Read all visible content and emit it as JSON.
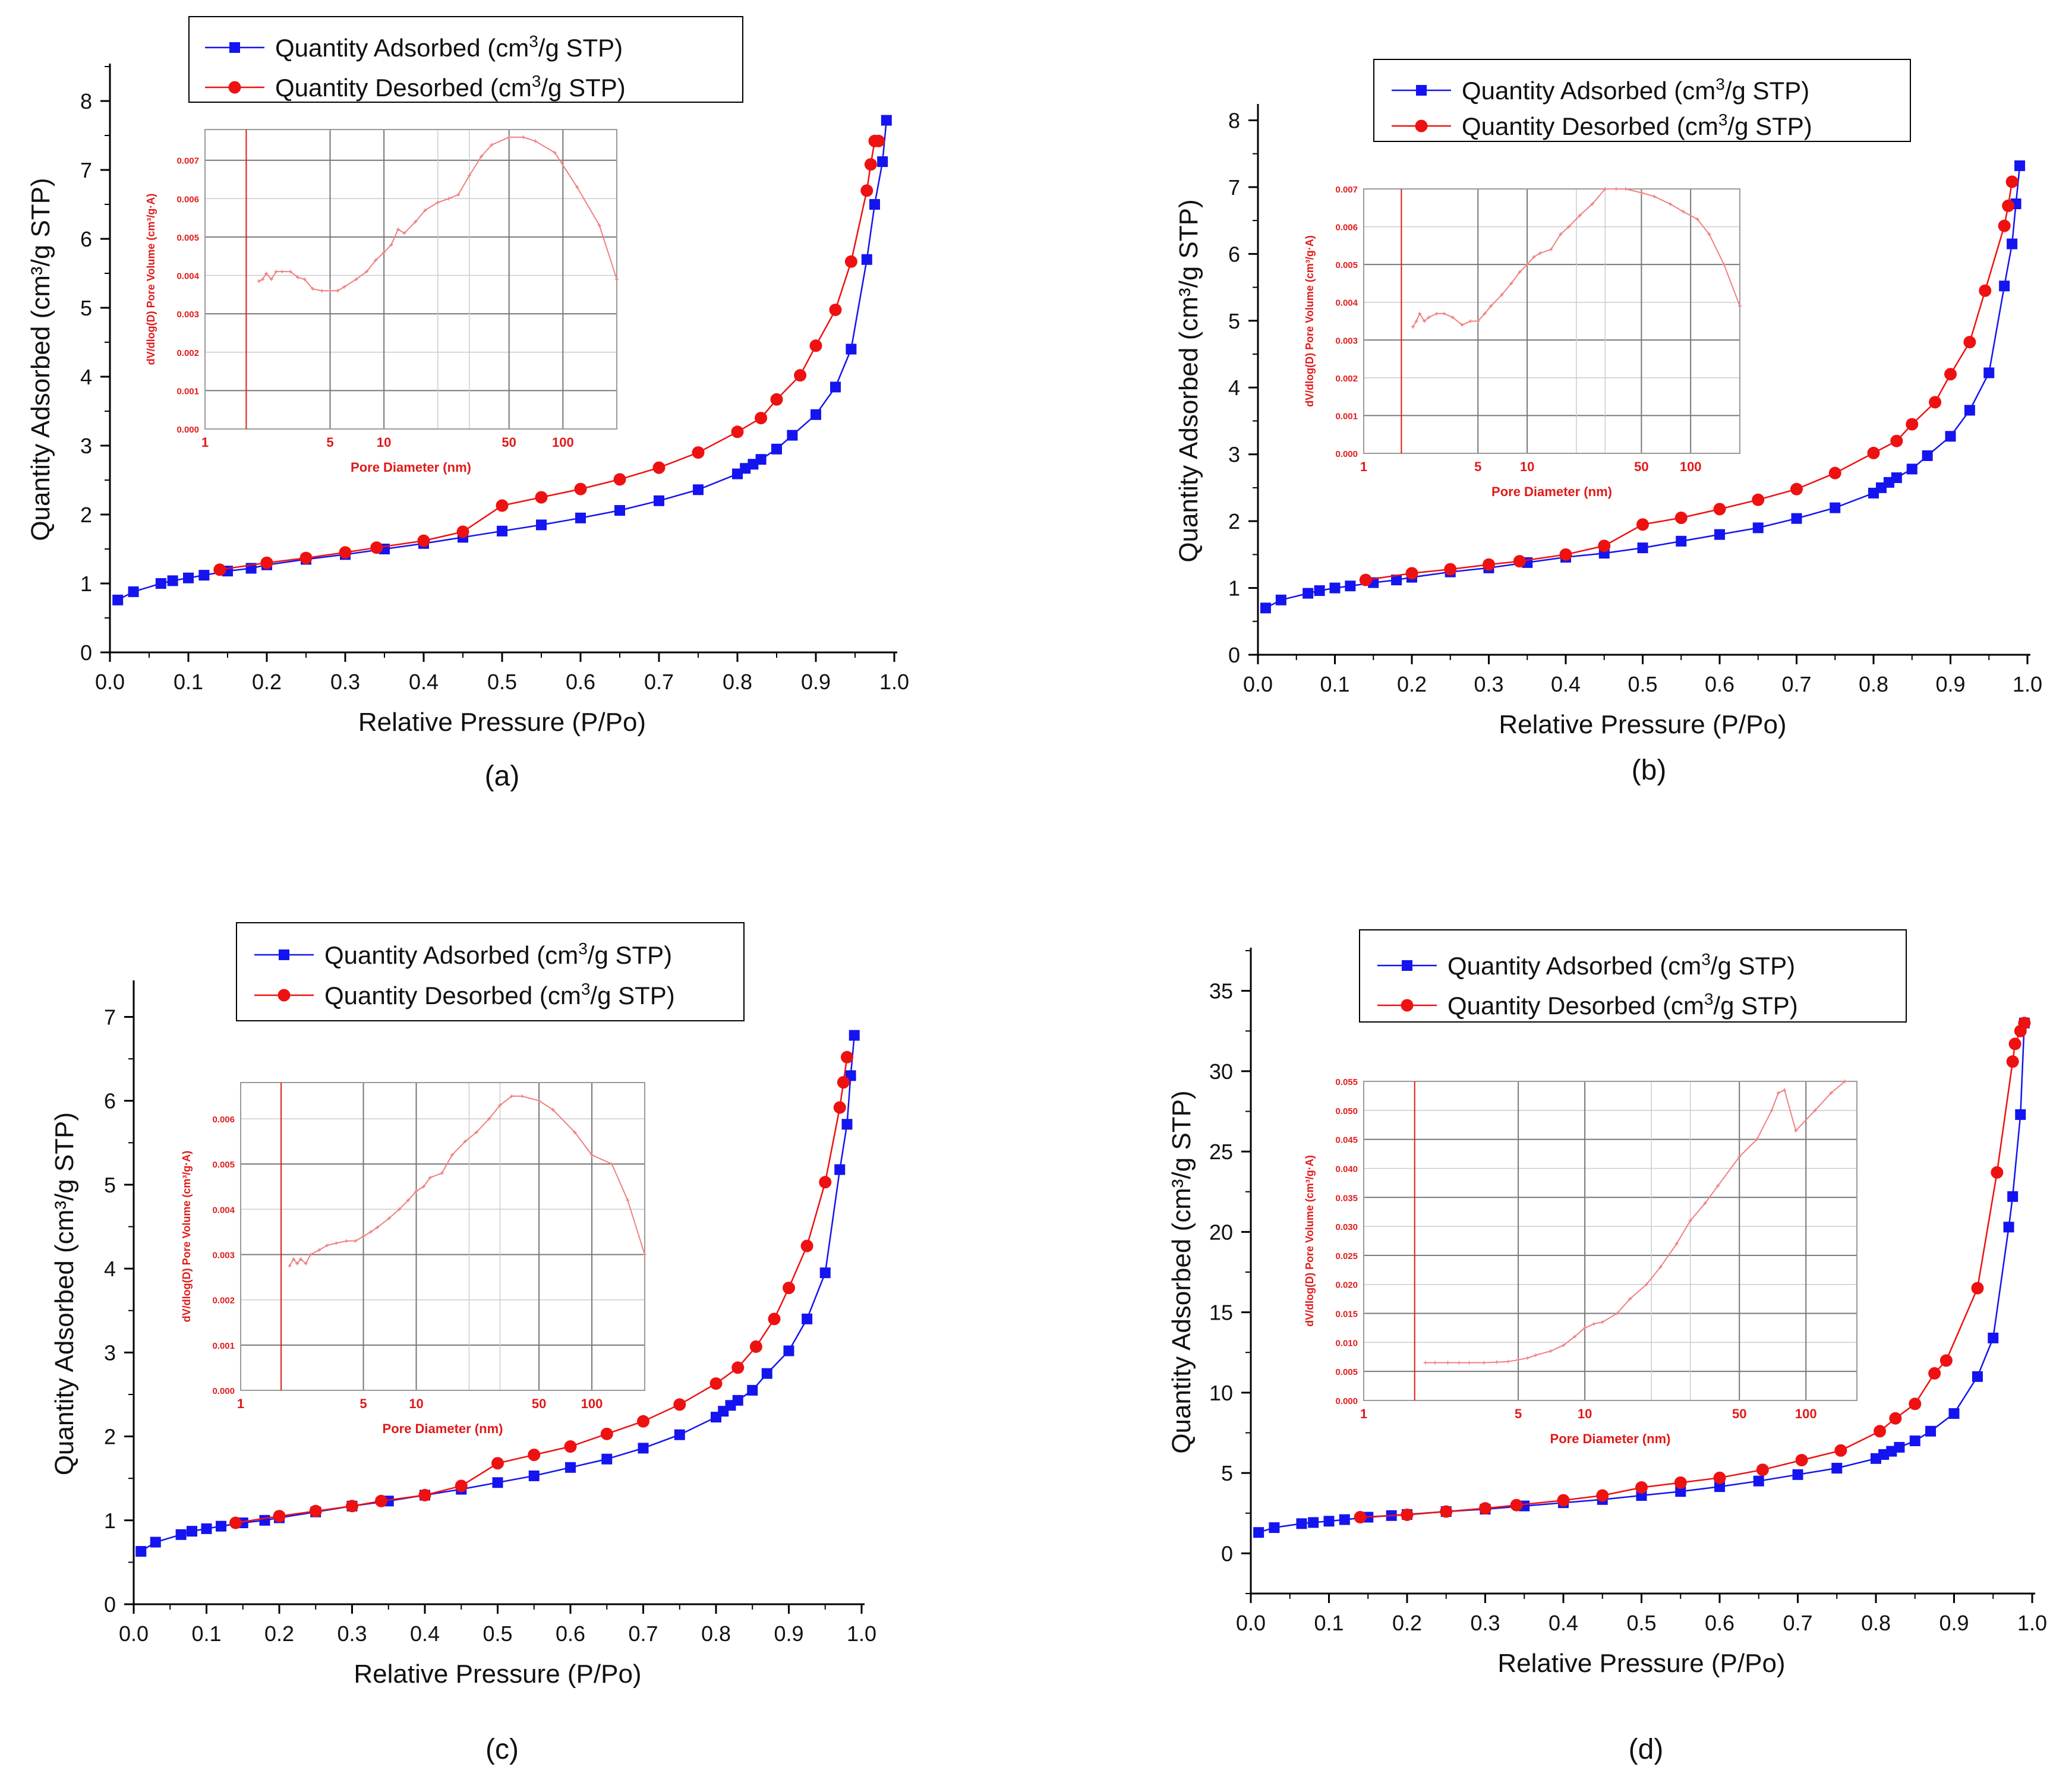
{
  "panel_captions": [
    "(a)",
    "(b)",
    "(c)",
    "(d)"
  ],
  "legend": {
    "adsorbed_pre": "Quantity Adsorbed (cm",
    "desorbed_pre": "Quantity Desorbed (cm",
    "sup": "3",
    "post": "/g STP)"
  },
  "colors": {
    "adsorbed": "#1414f0",
    "desorbed": "#ee1111",
    "inset_line": "#f08080",
    "inset_text": "#e01a1a",
    "axis": "#000000"
  },
  "chart_data": [
    {
      "type": "line",
      "panel": "(a)",
      "xlabel": "Relative Pressure (P/Po)",
      "ylabel": "Quantity Adsorbed (cm³/g STP)",
      "xlim": [
        0.0,
        1.0
      ],
      "ylim": [
        0,
        8.5
      ],
      "xticks": [
        0.0,
        0.1,
        0.2,
        0.3,
        0.4,
        0.5,
        0.6,
        0.7,
        0.8,
        0.9,
        1.0
      ],
      "yticks": [
        0,
        1,
        2,
        3,
        4,
        5,
        6,
        7,
        8
      ],
      "series": [
        {
          "name": "Quantity Adsorbed (cm3/g STP)",
          "x": [
            0.01,
            0.03,
            0.065,
            0.08,
            0.1,
            0.12,
            0.15,
            0.18,
            0.2,
            0.25,
            0.3,
            0.35,
            0.4,
            0.45,
            0.5,
            0.55,
            0.6,
            0.65,
            0.7,
            0.75,
            0.8,
            0.81,
            0.82,
            0.83,
            0.85,
            0.87,
            0.9,
            0.925,
            0.945,
            0.965,
            0.975,
            0.985,
            0.99
          ],
          "y": [
            0.76,
            0.88,
            1.0,
            1.04,
            1.08,
            1.12,
            1.18,
            1.22,
            1.27,
            1.35,
            1.42,
            1.5,
            1.58,
            1.67,
            1.76,
            1.85,
            1.95,
            2.06,
            2.2,
            2.36,
            2.59,
            2.67,
            2.73,
            2.8,
            2.95,
            3.15,
            3.45,
            3.85,
            4.4,
            5.7,
            6.5,
            7.12,
            7.72
          ]
        },
        {
          "name": "Quantity Desorbed (cm3/g STP)",
          "x": [
            0.14,
            0.2,
            0.25,
            0.3,
            0.34,
            0.4,
            0.45,
            0.5,
            0.55,
            0.6,
            0.65,
            0.7,
            0.75,
            0.8,
            0.83,
            0.85,
            0.88,
            0.9,
            0.925,
            0.945,
            0.965,
            0.97,
            0.975,
            0.98
          ],
          "y": [
            1.2,
            1.3,
            1.37,
            1.45,
            1.52,
            1.62,
            1.75,
            2.13,
            2.25,
            2.37,
            2.51,
            2.68,
            2.9,
            3.2,
            3.4,
            3.67,
            4.02,
            4.45,
            4.97,
            5.67,
            6.7,
            7.08,
            7.42,
            7.42
          ]
        }
      ],
      "inset": {
        "xlabel": "Pore Diameter (nm)",
        "ylabel": "dV/dlog(D) Pore Volume (cm³/g·A)",
        "xscale": "log",
        "xlim": [
          1,
          200
        ],
        "xticks": [
          1,
          5,
          10,
          50,
          100
        ],
        "ylim": [
          0,
          0.0078
        ],
        "yticks": [
          0.0,
          0.001,
          0.002,
          0.003,
          0.004,
          0.005,
          0.006,
          0.007
        ],
        "ytick_labels": [
          "0.000",
          "0.001",
          "0.002",
          "0.003",
          "0.004",
          "0.005",
          "0.006",
          "0.007"
        ],
        "marker_line_x": 1.7,
        "x": [
          2.0,
          2.1,
          2.2,
          2.35,
          2.5,
          2.7,
          3.0,
          3.3,
          3.6,
          4.0,
          4.5,
          5.0,
          5.5,
          6.0,
          7.0,
          8.0,
          9.0,
          10.0,
          11.0,
          12.0,
          13.0,
          15.0,
          17.0,
          20.0,
          23.0,
          26.0,
          30.0,
          35.0,
          40.0,
          50.0,
          60.0,
          70.0,
          90.0,
          120.0,
          160.0,
          200.0
        ],
        "y": [
          0.00385,
          0.0039,
          0.00405,
          0.0039,
          0.0041,
          0.0041,
          0.0041,
          0.00395,
          0.0039,
          0.00365,
          0.0036,
          0.0036,
          0.0036,
          0.0037,
          0.0039,
          0.0041,
          0.0044,
          0.0046,
          0.0048,
          0.0052,
          0.0051,
          0.0054,
          0.0057,
          0.0059,
          0.006,
          0.0061,
          0.0066,
          0.0071,
          0.0074,
          0.0076,
          0.0076,
          0.0075,
          0.0072,
          0.0063,
          0.0053,
          0.0039
        ]
      }
    },
    {
      "type": "line",
      "panel": "(b)",
      "xlabel": "Relative Pressure (P/Po)",
      "ylabel": "Quantity Adsorbed (cm³/g STP)",
      "xlim": [
        0.0,
        1.0
      ],
      "ylim": [
        0,
        8.2
      ],
      "xticks": [
        0.0,
        0.1,
        0.2,
        0.3,
        0.4,
        0.5,
        0.6,
        0.7,
        0.8,
        0.9,
        1.0
      ],
      "yticks": [
        0,
        1,
        2,
        3,
        4,
        5,
        6,
        7,
        8
      ],
      "series": [
        {
          "name": "Quantity Adsorbed (cm3/g STP)",
          "x": [
            0.01,
            0.03,
            0.065,
            0.08,
            0.1,
            0.12,
            0.15,
            0.18,
            0.2,
            0.25,
            0.3,
            0.35,
            0.4,
            0.45,
            0.5,
            0.55,
            0.6,
            0.65,
            0.7,
            0.75,
            0.8,
            0.81,
            0.82,
            0.83,
            0.85,
            0.87,
            0.9,
            0.925,
            0.95,
            0.97,
            0.98,
            0.985,
            0.99
          ],
          "y": [
            0.7,
            0.82,
            0.92,
            0.96,
            1.0,
            1.03,
            1.08,
            1.12,
            1.16,
            1.24,
            1.3,
            1.38,
            1.46,
            1.52,
            1.6,
            1.7,
            1.8,
            1.9,
            2.04,
            2.2,
            2.42,
            2.5,
            2.58,
            2.65,
            2.78,
            2.98,
            3.27,
            3.66,
            4.22,
            5.52,
            6.15,
            6.75,
            7.32
          ]
        },
        {
          "name": "Quantity Desorbed (cm3/g STP)",
          "x": [
            0.14,
            0.2,
            0.25,
            0.3,
            0.34,
            0.4,
            0.45,
            0.5,
            0.55,
            0.6,
            0.65,
            0.7,
            0.75,
            0.8,
            0.83,
            0.85,
            0.88,
            0.9,
            0.925,
            0.945,
            0.97,
            0.975,
            0.98
          ],
          "y": [
            1.12,
            1.22,
            1.28,
            1.35,
            1.4,
            1.5,
            1.63,
            1.95,
            2.05,
            2.18,
            2.32,
            2.48,
            2.72,
            3.02,
            3.2,
            3.45,
            3.78,
            4.2,
            4.68,
            5.45,
            6.42,
            6.72,
            7.08
          ]
        }
      ],
      "inset": {
        "xlabel": "Pore Diameter (nm)",
        "ylabel": "dV/dlog(D) Pore Volume (cm³/g·A)",
        "xscale": "log",
        "xlim": [
          1,
          200
        ],
        "xticks": [
          1,
          5,
          10,
          50,
          100
        ],
        "ylim": [
          0,
          0.007
        ],
        "yticks": [
          0.0,
          0.001,
          0.002,
          0.003,
          0.004,
          0.005,
          0.006,
          0.007
        ],
        "ytick_labels": [
          "0.000",
          "0.001",
          "0.002",
          "0.003",
          "0.004",
          "0.005",
          "0.006",
          "0.007"
        ],
        "marker_line_x": 1.7,
        "x": [
          2.0,
          2.1,
          2.2,
          2.35,
          2.5,
          2.8,
          3.1,
          3.5,
          4.0,
          4.5,
          5.0,
          5.5,
          6.0,
          7.0,
          8.0,
          9.0,
          10.0,
          11.0,
          12.0,
          14.0,
          16.0,
          18.0,
          21.0,
          25.0,
          30.0,
          35.0,
          40.0,
          50.0,
          60.0,
          75.0,
          90.0,
          110.0,
          130.0,
          160.0,
          200.0
        ],
        "y": [
          0.00335,
          0.0035,
          0.0037,
          0.0035,
          0.0036,
          0.0037,
          0.0037,
          0.0036,
          0.0034,
          0.0035,
          0.0035,
          0.0037,
          0.0039,
          0.0042,
          0.0045,
          0.0048,
          0.005,
          0.0052,
          0.0053,
          0.0054,
          0.0058,
          0.006,
          0.0063,
          0.0066,
          0.007,
          0.007,
          0.007,
          0.0069,
          0.0068,
          0.0066,
          0.0064,
          0.0062,
          0.0058,
          0.005,
          0.0039
        ]
      }
    },
    {
      "type": "line",
      "panel": "(c)",
      "xlabel": "Relative Pressure (P/Po)",
      "ylabel": "Quantity Adsorbed (cm³/g STP)",
      "xlim": [
        0.0,
        1.0
      ],
      "ylim": [
        0,
        7.4
      ],
      "xticks": [
        0.0,
        0.1,
        0.2,
        0.3,
        0.4,
        0.5,
        0.6,
        0.7,
        0.8,
        0.9,
        1.0
      ],
      "yticks": [
        0,
        1,
        2,
        3,
        4,
        5,
        6,
        7
      ],
      "series": [
        {
          "name": "Quantity Adsorbed (cm3/g STP)",
          "x": [
            0.01,
            0.03,
            0.065,
            0.08,
            0.1,
            0.12,
            0.15,
            0.18,
            0.2,
            0.25,
            0.3,
            0.35,
            0.4,
            0.45,
            0.5,
            0.55,
            0.6,
            0.65,
            0.7,
            0.75,
            0.8,
            0.81,
            0.82,
            0.83,
            0.85,
            0.87,
            0.9,
            0.925,
            0.95,
            0.97,
            0.98,
            0.985,
            0.99
          ],
          "y": [
            0.63,
            0.74,
            0.83,
            0.87,
            0.9,
            0.93,
            0.97,
            1.0,
            1.03,
            1.1,
            1.17,
            1.23,
            1.3,
            1.37,
            1.45,
            1.53,
            1.63,
            1.73,
            1.86,
            2.02,
            2.23,
            2.3,
            2.37,
            2.43,
            2.55,
            2.75,
            3.02,
            3.4,
            3.95,
            5.18,
            5.72,
            6.3,
            6.78
          ]
        },
        {
          "name": "Quantity Desorbed (cm3/g STP)",
          "x": [
            0.14,
            0.2,
            0.25,
            0.3,
            0.34,
            0.4,
            0.45,
            0.5,
            0.55,
            0.6,
            0.65,
            0.7,
            0.75,
            0.8,
            0.83,
            0.855,
            0.88,
            0.9,
            0.925,
            0.95,
            0.97,
            0.975,
            0.98
          ],
          "y": [
            0.97,
            1.05,
            1.11,
            1.17,
            1.23,
            1.3,
            1.41,
            1.68,
            1.78,
            1.88,
            2.03,
            2.18,
            2.38,
            2.63,
            2.82,
            3.07,
            3.4,
            3.77,
            4.27,
            5.03,
            5.92,
            6.22,
            6.52
          ]
        }
      ],
      "inset": {
        "xlabel": "Pore Diameter (nm)",
        "ylabel": "dV/dlog(D) Pore Volume (cm³/g·A)",
        "xscale": "log",
        "xlim": [
          1,
          200
        ],
        "xticks": [
          1,
          5,
          10,
          50,
          100
        ],
        "ylim": [
          0,
          0.0068
        ],
        "yticks": [
          0.0,
          0.001,
          0.002,
          0.003,
          0.004,
          0.005,
          0.006
        ],
        "ytick_labels": [
          "0.000",
          "0.001",
          "0.002",
          "0.003",
          "0.004",
          "0.005",
          "0.006"
        ],
        "marker_line_x": 1.7,
        "x": [
          1.9,
          2.0,
          2.1,
          2.2,
          2.35,
          2.5,
          2.8,
          3.1,
          3.5,
          4.0,
          4.5,
          5.0,
          5.5,
          6.0,
          7.0,
          8.0,
          9.0,
          10.0,
          11.0,
          12.0,
          14.0,
          16.0,
          19.0,
          22.0,
          26.0,
          30.0,
          35.0,
          40.0,
          50.0,
          60.0,
          80.0,
          100.0,
          130.0,
          160.0,
          200.0
        ],
        "y": [
          0.00275,
          0.0029,
          0.0028,
          0.0029,
          0.0028,
          0.003,
          0.0031,
          0.0032,
          0.00325,
          0.0033,
          0.0033,
          0.0034,
          0.0035,
          0.0036,
          0.0038,
          0.004,
          0.0042,
          0.0044,
          0.0045,
          0.0047,
          0.0048,
          0.0052,
          0.0055,
          0.0057,
          0.006,
          0.0063,
          0.0065,
          0.0065,
          0.0064,
          0.0062,
          0.0057,
          0.0052,
          0.005,
          0.0042,
          0.003
        ]
      }
    },
    {
      "type": "line",
      "panel": "(d)",
      "xlabel": "Relative Pressure (P/Po)",
      "ylabel": "Quantity Adsorbed (cm³/g STP)",
      "xlim": [
        0.0,
        1.0
      ],
      "ylim": [
        -2.5,
        37.5
      ],
      "xticks": [
        0.0,
        0.1,
        0.2,
        0.3,
        0.4,
        0.5,
        0.6,
        0.7,
        0.8,
        0.9,
        1.0
      ],
      "yticks": [
        0,
        5,
        10,
        15,
        20,
        25,
        30,
        35
      ],
      "series": [
        {
          "name": "Quantity Adsorbed (cm3/g STP)",
          "x": [
            0.01,
            0.03,
            0.065,
            0.08,
            0.1,
            0.12,
            0.15,
            0.18,
            0.2,
            0.25,
            0.3,
            0.35,
            0.4,
            0.45,
            0.5,
            0.55,
            0.6,
            0.65,
            0.7,
            0.75,
            0.8,
            0.81,
            0.82,
            0.83,
            0.85,
            0.87,
            0.9,
            0.93,
            0.95,
            0.97,
            0.975,
            0.985,
            0.99
          ],
          "y": [
            1.3,
            1.6,
            1.85,
            1.92,
            2.0,
            2.1,
            2.25,
            2.35,
            2.42,
            2.6,
            2.75,
            2.95,
            3.15,
            3.35,
            3.6,
            3.85,
            4.15,
            4.5,
            4.9,
            5.3,
            5.9,
            6.15,
            6.35,
            6.6,
            7.0,
            7.6,
            8.7,
            11.0,
            13.4,
            20.3,
            22.2,
            27.3,
            33.0
          ]
        },
        {
          "name": "Quantity Desorbed (cm3/g STP)",
          "x": [
            0.14,
            0.2,
            0.25,
            0.3,
            0.34,
            0.4,
            0.45,
            0.5,
            0.55,
            0.6,
            0.655,
            0.705,
            0.755,
            0.805,
            0.825,
            0.85,
            0.875,
            0.89,
            0.93,
            0.955,
            0.975,
            0.978,
            0.985,
            0.99
          ],
          "y": [
            2.25,
            2.4,
            2.6,
            2.8,
            3.0,
            3.3,
            3.6,
            4.1,
            4.4,
            4.7,
            5.2,
            5.8,
            6.4,
            7.6,
            8.4,
            9.3,
            11.2,
            12.0,
            16.5,
            23.7,
            30.6,
            31.7,
            32.5,
            33.0
          ]
        }
      ],
      "inset": {
        "xlabel": "Pore Diameter (nm)",
        "ylabel": "dV/dlog(D) Pore Volume (cm³/g·A)",
        "xscale": "log",
        "xlim": [
          1,
          170
        ],
        "xticks": [
          1,
          5,
          10,
          50,
          100
        ],
        "ylim": [
          0,
          0.055
        ],
        "yticks": [
          0.0,
          0.005,
          0.01,
          0.015,
          0.02,
          0.025,
          0.03,
          0.035,
          0.04,
          0.045,
          0.05,
          0.055
        ],
        "ytick_labels": [
          "0.000",
          "0.005",
          "0.010",
          "0.015",
          "0.020",
          "0.025",
          "0.030",
          "0.035",
          "0.040",
          "0.045",
          "0.050",
          "0.055"
        ],
        "marker_line_x": 1.7,
        "x": [
          1.9,
          2.1,
          2.4,
          2.7,
          3.0,
          3.5,
          4.0,
          4.5,
          5.0,
          5.5,
          6.0,
          7.0,
          8.0,
          9.0,
          10.0,
          11.0,
          12.0,
          14.0,
          16.0,
          19.0,
          22.0,
          26.0,
          30.0,
          35.0,
          40.0,
          50.0,
          60.0,
          70.0,
          75.0,
          80.0,
          90.0,
          110.0,
          130.0,
          150.0
        ],
        "y": [
          0.0065,
          0.0065,
          0.0065,
          0.0065,
          0.0065,
          0.0065,
          0.0066,
          0.0067,
          0.007,
          0.0073,
          0.0078,
          0.0085,
          0.0095,
          0.011,
          0.0125,
          0.0132,
          0.0135,
          0.015,
          0.0175,
          0.02,
          0.023,
          0.027,
          0.031,
          0.034,
          0.037,
          0.042,
          0.045,
          0.05,
          0.053,
          0.0535,
          0.0465,
          0.05,
          0.053,
          0.055
        ]
      }
    }
  ]
}
